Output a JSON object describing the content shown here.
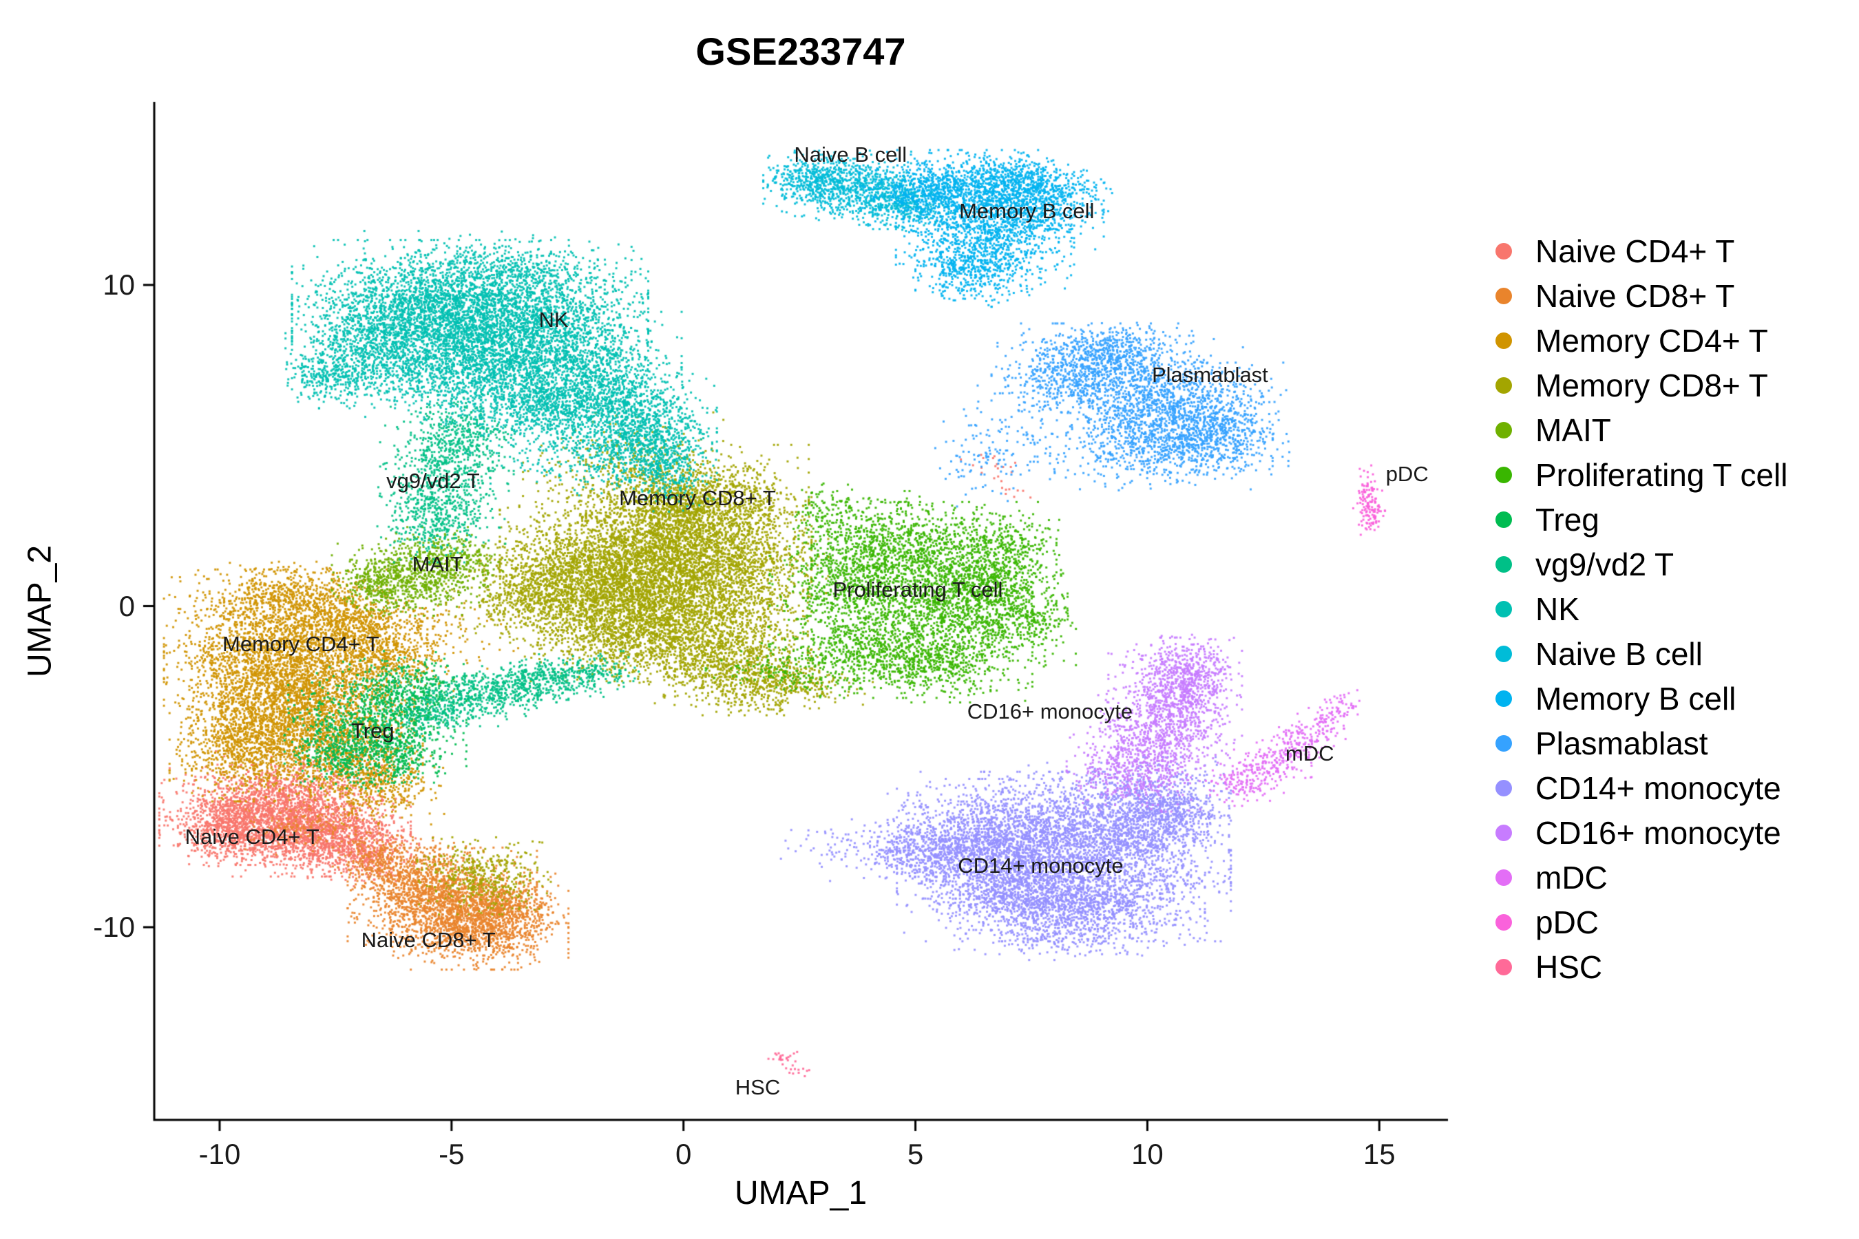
{
  "title": "GSE233747",
  "axes": {
    "x": {
      "label": "UMAP_1",
      "ticks": [
        -10,
        -5,
        0,
        5,
        10,
        15
      ]
    },
    "y": {
      "label": "UMAP_2",
      "ticks": [
        -10,
        0,
        10
      ]
    }
  },
  "chart_data": {
    "type": "scatter",
    "title": "GSE233747",
    "xlabel": "UMAP_1",
    "ylabel": "UMAP_2",
    "xlim": [
      -11.41,
      16.48
    ],
    "ylim": [
      -16.0,
      15.7
    ],
    "x_ticks": [
      -10,
      -5,
      0,
      5,
      10,
      15
    ],
    "y_ticks": [
      -10,
      0,
      10
    ],
    "grid": false,
    "legend_position": "right",
    "point_size": 3,
    "series": [
      {
        "name": "Naive CD4+ T",
        "color": "#F8766D",
        "label": {
          "text": "Naive CD4+ T",
          "x": -9.3,
          "y": -7.2
        },
        "blobs": [
          [
            -8.9,
            -6.5,
            1.0,
            0.65,
            1600
          ],
          [
            -7.8,
            -7.1,
            0.8,
            0.55,
            1100
          ],
          [
            -9.7,
            -6.9,
            0.5,
            0.5,
            550
          ],
          [
            -6.9,
            -7.8,
            0.5,
            0.4,
            300
          ],
          [
            -8.4,
            -5.6,
            0.8,
            0.45,
            350
          ],
          [
            6.7,
            4.4,
            0.3,
            0.3,
            18
          ],
          [
            7.0,
            3.6,
            0.2,
            0.2,
            8
          ]
        ]
      },
      {
        "name": "Naive CD8+ T",
        "color": "#E9842C",
        "label": {
          "text": "Naive CD8+ T",
          "x": -5.5,
          "y": -10.4
        },
        "blobs": [
          [
            -5.2,
            -9.2,
            0.85,
            0.7,
            1300
          ],
          [
            -4.4,
            -10.0,
            0.8,
            0.55,
            950
          ],
          [
            -5.9,
            -8.4,
            0.55,
            0.5,
            420
          ],
          [
            -3.9,
            -9.3,
            0.5,
            0.45,
            380
          ],
          [
            -6.6,
            -7.9,
            0.4,
            0.35,
            180
          ],
          [
            -8.0,
            -6.9,
            0.6,
            0.35,
            160
          ]
        ]
      },
      {
        "name": "Memory CD4+ T",
        "color": "#D09400",
        "label": {
          "text": "Memory CD4+ T",
          "x": -8.25,
          "y": -1.2
        },
        "blobs": [
          [
            -8.8,
            -1.5,
            1.0,
            1.1,
            2000
          ],
          [
            -8.2,
            -3.2,
            1.0,
            0.9,
            1700
          ],
          [
            -9.4,
            -4.4,
            0.7,
            0.7,
            850
          ],
          [
            -7.3,
            -4.6,
            0.7,
            0.6,
            650
          ],
          [
            -7.2,
            -0.6,
            0.7,
            0.6,
            650
          ],
          [
            -8.6,
            0.3,
            0.8,
            0.45,
            480
          ],
          [
            -6.4,
            -1.6,
            0.6,
            0.6,
            450
          ],
          [
            -6.6,
            -5.6,
            0.6,
            0.5,
            380
          ],
          [
            -5.6,
            -0.8,
            0.9,
            0.6,
            160
          ]
        ]
      },
      {
        "name": "Memory CD8+ T",
        "color": "#A3A500",
        "label": {
          "text": "Memory CD8+ T",
          "x": 0.3,
          "y": 3.35
        },
        "blobs": [
          [
            0.3,
            3.1,
            1.0,
            0.8,
            1400
          ],
          [
            -0.6,
            1.8,
            1.4,
            1.0,
            2300
          ],
          [
            -0.2,
            0.2,
            1.2,
            1.0,
            2000
          ],
          [
            -2.0,
            0.9,
            1.0,
            0.8,
            1200
          ],
          [
            -3.2,
            0.3,
            0.8,
            0.6,
            650
          ],
          [
            0.6,
            -1.4,
            0.9,
            0.7,
            850
          ],
          [
            1.5,
            -2.2,
            0.7,
            0.5,
            420
          ],
          [
            -1.5,
            -0.9,
            0.8,
            0.6,
            650
          ],
          [
            2.4,
            -2.5,
            0.7,
            0.3,
            200
          ],
          [
            -4.3,
            -8.4,
            0.6,
            0.5,
            420
          ],
          [
            -1.3,
            4.4,
            0.9,
            0.7,
            250
          ],
          [
            1.2,
            1.2,
            0.8,
            0.8,
            500
          ]
        ]
      },
      {
        "name": "MAIT",
        "color": "#6FB000",
        "label": {
          "text": "MAIT",
          "x": -5.3,
          "y": 1.3
        },
        "blobs": [
          [
            -5.9,
            0.9,
            0.7,
            0.5,
            650
          ],
          [
            -5.0,
            1.5,
            0.5,
            0.4,
            280
          ],
          [
            -6.5,
            0.6,
            0.4,
            0.35,
            170
          ]
        ]
      },
      {
        "name": "Proliferating T cell",
        "color": "#39B600",
        "label": {
          "text": "Proliferating T cell",
          "x": 5.05,
          "y": 0.5
        },
        "blobs": [
          [
            5.4,
            0.6,
            1.1,
            1.1,
            1500
          ],
          [
            6.6,
            0.2,
            0.7,
            0.9,
            750
          ],
          [
            4.4,
            1.9,
            0.8,
            0.7,
            650
          ],
          [
            4.0,
            -1.3,
            0.9,
            0.65,
            650
          ],
          [
            5.6,
            -1.8,
            0.8,
            0.5,
            450
          ],
          [
            3.3,
            0.5,
            0.6,
            0.7,
            380
          ],
          [
            6.9,
            1.9,
            0.5,
            0.5,
            260
          ],
          [
            2.4,
            -2.0,
            0.8,
            0.35,
            160
          ],
          [
            7.5,
            -0.4,
            0.4,
            0.6,
            140
          ],
          [
            3.1,
            2.9,
            0.4,
            0.4,
            120
          ]
        ]
      },
      {
        "name": "Treg",
        "color": "#00BC51",
        "label": {
          "text": "Treg",
          "x": -6.7,
          "y": -3.9
        },
        "blobs": [
          [
            -6.6,
            -3.7,
            0.8,
            0.75,
            850
          ],
          [
            -5.9,
            -2.6,
            0.6,
            0.5,
            380
          ],
          [
            -7.4,
            -4.6,
            0.5,
            0.45,
            280
          ],
          [
            -6.1,
            -4.8,
            0.4,
            0.4,
            180
          ]
        ]
      },
      {
        "name": "vg9/vd2 T",
        "color": "#00C087",
        "label": {
          "text": "vg9/vd2 T",
          "x": -5.4,
          "y": 3.9
        },
        "blobs": [
          [
            -5.1,
            4.3,
            0.6,
            1.0,
            650
          ],
          [
            -5.4,
            2.8,
            0.5,
            0.6,
            320
          ],
          [
            -4.6,
            5.4,
            0.4,
            0.5,
            180
          ],
          [
            -4.7,
            -2.9,
            0.65,
            0.35,
            320
          ],
          [
            -3.7,
            -2.5,
            0.6,
            0.3,
            280
          ],
          [
            -2.7,
            -2.2,
            0.55,
            0.3,
            230
          ],
          [
            -1.9,
            -2.0,
            0.4,
            0.25,
            130
          ],
          [
            -5.5,
            -3.4,
            0.4,
            0.3,
            140
          ]
        ]
      },
      {
        "name": "NK",
        "color": "#00C0B2",
        "label": {
          "text": "NK",
          "x": -2.8,
          "y": 8.9
        },
        "blobs": [
          [
            -4.6,
            9.6,
            1.6,
            0.75,
            2000
          ],
          [
            -5.8,
            8.6,
            1.1,
            0.8,
            1400
          ],
          [
            -3.4,
            8.4,
            1.1,
            0.9,
            1500
          ],
          [
            -2.2,
            7.0,
            0.9,
            0.9,
            1100
          ],
          [
            -4.7,
            7.4,
            0.9,
            0.7,
            850
          ],
          [
            -1.2,
            5.8,
            0.8,
            0.8,
            850
          ],
          [
            -0.6,
            4.9,
            0.55,
            0.6,
            420
          ],
          [
            -6.9,
            7.6,
            0.7,
            0.6,
            480
          ],
          [
            -7.7,
            7.15,
            0.4,
            0.35,
            180
          ],
          [
            -3.2,
            6.2,
            0.8,
            0.6,
            550
          ],
          [
            -2.0,
            4.6,
            0.9,
            0.5,
            230
          ],
          [
            -4.0,
            10.6,
            1.2,
            0.45,
            260
          ],
          [
            -0.3,
            3.9,
            0.4,
            0.4,
            140
          ]
        ]
      },
      {
        "name": "Naive B cell",
        "color": "#00BCD8",
        "label": {
          "text": "Naive B cell",
          "x": 3.6,
          "y": 14.05
        },
        "blobs": [
          [
            3.4,
            13.1,
            0.7,
            0.45,
            550
          ],
          [
            4.3,
            12.7,
            0.6,
            0.4,
            380
          ],
          [
            2.8,
            13.4,
            0.45,
            0.3,
            240
          ],
          [
            4.9,
            12.4,
            0.4,
            0.3,
            160
          ]
        ]
      },
      {
        "name": "Memory B cell",
        "color": "#00B3F0",
        "label": {
          "text": "Memory B cell",
          "x": 7.4,
          "y": 12.3
        },
        "blobs": [
          [
            6.2,
            13.0,
            1.0,
            0.5,
            750
          ],
          [
            6.9,
            12.2,
            0.9,
            0.6,
            750
          ],
          [
            6.5,
            11.2,
            0.8,
            0.7,
            650
          ],
          [
            6.2,
            10.4,
            0.5,
            0.45,
            280
          ],
          [
            7.8,
            12.9,
            0.6,
            0.4,
            320
          ],
          [
            5.3,
            12.9,
            0.5,
            0.4,
            280
          ],
          [
            7.0,
            13.4,
            0.5,
            0.3,
            200
          ]
        ]
      },
      {
        "name": "Plasmablast",
        "color": "#35A2FF",
        "label": {
          "text": "Plasmablast",
          "x": 11.35,
          "y": 7.2
        },
        "blobs": [
          [
            8.8,
            7.6,
            0.9,
            0.5,
            550
          ],
          [
            9.9,
            6.5,
            0.9,
            0.8,
            750
          ],
          [
            10.9,
            5.9,
            0.9,
            0.7,
            650
          ],
          [
            10.3,
            4.9,
            1.0,
            0.55,
            550
          ],
          [
            11.6,
            5.3,
            0.6,
            0.5,
            280
          ],
          [
            8.2,
            6.9,
            0.5,
            0.45,
            230
          ],
          [
            7.0,
            5.3,
            0.7,
            0.7,
            110
          ],
          [
            6.4,
            4.3,
            0.5,
            0.5,
            50
          ],
          [
            9.3,
            8.1,
            0.5,
            0.3,
            160
          ]
        ]
      },
      {
        "name": "CD14+ monocyte",
        "color": "#9590FF",
        "label": {
          "text": "CD14+ monocyte",
          "x": 7.7,
          "y": -8.1
        },
        "blobs": [
          [
            8.2,
            -7.8,
            1.5,
            1.1,
            2400
          ],
          [
            6.8,
            -7.3,
            1.0,
            0.8,
            1100
          ],
          [
            9.6,
            -6.8,
            0.9,
            0.8,
            950
          ],
          [
            8.6,
            -9.4,
            1.1,
            0.6,
            850
          ],
          [
            7.3,
            -9.0,
            0.8,
            0.5,
            550
          ],
          [
            5.7,
            -7.7,
            0.7,
            0.6,
            480
          ],
          [
            10.3,
            -5.9,
            0.6,
            0.5,
            320
          ],
          [
            4.6,
            -7.6,
            0.6,
            0.4,
            140
          ],
          [
            3.3,
            -7.4,
            0.5,
            0.3,
            50
          ],
          [
            8.0,
            -10.3,
            0.9,
            0.3,
            140
          ],
          [
            10.6,
            -6.6,
            0.4,
            0.4,
            160
          ]
        ]
      },
      {
        "name": "CD16+ monocyte",
        "color": "#C77CFF",
        "label": {
          "text": "CD16+ monocyte",
          "x": 7.9,
          "y": -3.3
        },
        "blobs": [
          [
            10.6,
            -2.9,
            0.6,
            0.8,
            650
          ],
          [
            10.2,
            -4.2,
            0.7,
            0.7,
            550
          ],
          [
            9.7,
            -5.2,
            0.6,
            0.5,
            320
          ],
          [
            10.9,
            -1.9,
            0.45,
            0.45,
            200
          ],
          [
            10.85,
            -2.4,
            0.4,
            0.5,
            180
          ]
        ]
      },
      {
        "name": "mDC",
        "color": "#E36EF6",
        "label": {
          "text": "mDC",
          "x": 13.5,
          "y": -4.6
        },
        "blobs": [
          [
            12.1,
            -5.5,
            0.35,
            0.3,
            140
          ],
          [
            12.7,
            -4.9,
            0.35,
            0.3,
            140
          ],
          [
            13.3,
            -4.2,
            0.3,
            0.3,
            110
          ],
          [
            13.8,
            -3.6,
            0.25,
            0.25,
            70
          ],
          [
            14.2,
            -3.1,
            0.2,
            0.2,
            40
          ]
        ]
      },
      {
        "name": "pDC",
        "color": "#FA62DB",
        "label": {
          "text": "pDC",
          "x": 15.6,
          "y": 4.1
        },
        "blobs": [
          [
            14.75,
            3.3,
            0.13,
            0.45,
            110
          ],
          [
            14.9,
            2.85,
            0.1,
            0.2,
            35
          ]
        ]
      },
      {
        "name": "HSC",
        "color": "#FF6A98",
        "label": {
          "text": "HSC",
          "x": 1.6,
          "y": -15.0
        },
        "blobs": [
          [
            2.15,
            -14.1,
            0.15,
            0.12,
            22
          ],
          [
            2.5,
            -14.45,
            0.12,
            0.1,
            12
          ]
        ]
      }
    ]
  }
}
